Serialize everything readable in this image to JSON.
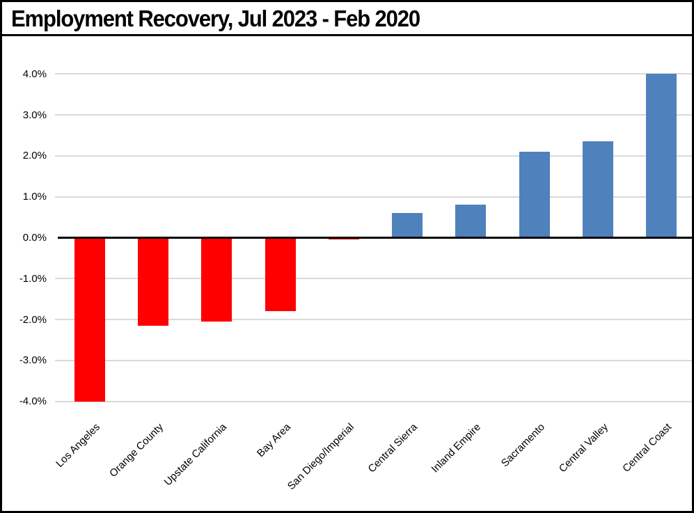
{
  "window": {
    "title": "Employment Recovery, Jul 2023 - Feb 2020"
  },
  "chart_data": {
    "type": "bar",
    "title": "Employment Recovery, Jul 2023 - Feb 2020",
    "categories": [
      "Los Angeles",
      "Orange County",
      "Upstate California",
      "Bay Area",
      "San Diego/Imperial",
      "Central Sierra",
      "Inland Empire",
      "Sacramento",
      "Central Valley",
      "Central Coast"
    ],
    "values": [
      -4.0,
      -2.15,
      -2.05,
      -1.8,
      -0.05,
      0.6,
      0.8,
      2.1,
      2.35,
      4.0
    ],
    "unit": "%",
    "value_note": "percent employment change, estimated from gridlines",
    "y_ticks": [
      4,
      3,
      2,
      1,
      0,
      -1,
      -2,
      -3,
      -4
    ],
    "y_tick_labels": [
      "4.0%",
      "3.0%",
      "2.0%",
      "1.0%",
      "0.0%",
      "-1.0%",
      "-2.0%",
      "-3.0%",
      "-4.0%"
    ],
    "ylim": [
      -4,
      4
    ],
    "xlabel": "",
    "ylabel": "",
    "grid": true,
    "legend": "none",
    "colors": {
      "positive_bar": "#4F81BD",
      "negative_bar": "#FF0000",
      "gridline": "#D9D9D9",
      "zero_axis": "#000000",
      "text": "#000000"
    }
  }
}
